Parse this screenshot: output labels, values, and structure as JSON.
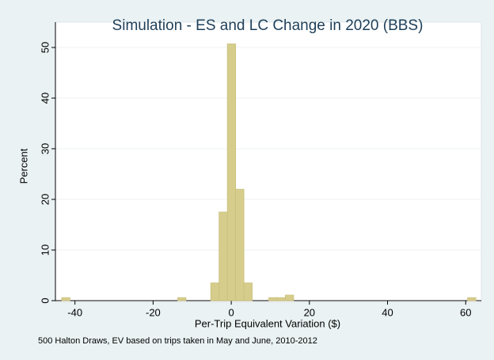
{
  "chart_data": {
    "type": "histogram",
    "title": "Simulation - ES and LC Change in 2020 (BBS)",
    "xlabel": "Per-Trip Equivalent Variation ($)",
    "ylabel": "Percent",
    "note": "500 Halton Draws, EV based on trips taken in May and June, 2010-2012",
    "bins": [
      -43.4,
      -41.28,
      -39.16,
      -37.04,
      -34.92,
      -32.8,
      -30.68,
      -28.56,
      -26.44,
      -24.32,
      -22.2,
      -20.08,
      -17.96,
      -15.84,
      -13.72,
      -11.6,
      -9.48,
      -7.36,
      -5.24,
      -3.12,
      -1.0,
      1.12,
      3.24,
      5.36,
      7.48,
      9.6,
      11.72,
      13.84,
      15.96,
      18.08,
      20.2,
      22.32,
      24.44,
      26.56,
      28.68,
      30.8,
      32.92,
      35.04,
      37.16,
      39.28,
      41.4,
      43.52,
      45.64,
      47.76,
      49.88,
      52.0,
      54.12,
      56.24,
      58.36,
      60.48,
      62.6
    ],
    "values": [
      0.6,
      0,
      0,
      0,
      0,
      0,
      0,
      0,
      0,
      0,
      0,
      0,
      0,
      0,
      0.6,
      0,
      0,
      0,
      3.5,
      17.5,
      50.7,
      22,
      3.5,
      0,
      0,
      0.6,
      0.6,
      1.1,
      0,
      0,
      0,
      0,
      0,
      0,
      0,
      0,
      0,
      0,
      0,
      0,
      0,
      0,
      0,
      0,
      0,
      0,
      0,
      0,
      0,
      0.6
    ],
    "color": "#d6cd8c",
    "xlim": [
      -45,
      64
    ],
    "ylim": [
      0,
      55
    ],
    "xticks": [
      -40,
      -20,
      0,
      20,
      40,
      60
    ],
    "yticks": [
      0,
      10,
      20,
      30,
      40,
      50
    ],
    "grid": true
  }
}
